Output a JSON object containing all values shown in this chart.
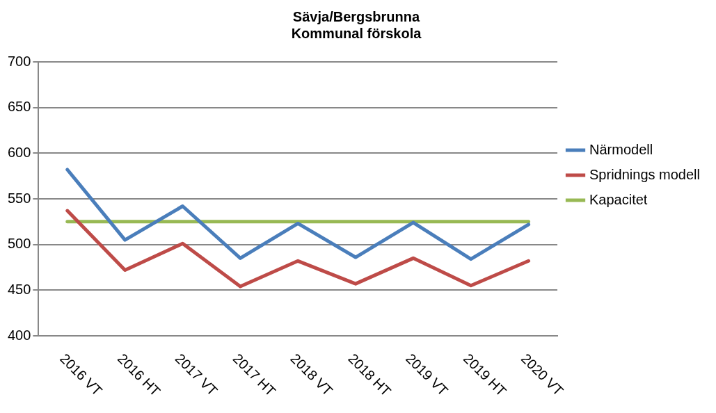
{
  "chart_data": {
    "type": "line",
    "title": [
      "Sävja/Bergsbrunna",
      "Kommunal förskola"
    ],
    "categories": [
      "2016 VT",
      "2016 HT",
      "2017 VT",
      "2017 HT",
      "2018 VT",
      "2018 HT",
      "2019 VT",
      "2019 HT",
      "2020 VT"
    ],
    "series": [
      {
        "name": "Närmodell",
        "color": "#4a7ebb",
        "values": [
          582,
          505,
          542,
          485,
          523,
          486,
          524,
          484,
          522
        ]
      },
      {
        "name": "Spridnings modell",
        "color": "#be4b48",
        "values": [
          537,
          472,
          501,
          454,
          482,
          457,
          485,
          455,
          482
        ]
      },
      {
        "name": "Kapacitet",
        "color": "#98b954",
        "values": [
          525,
          525,
          525,
          525,
          525,
          525,
          525,
          525,
          525
        ]
      }
    ],
    "ylim": [
      400,
      700
    ],
    "yticks": [
      400,
      450,
      500,
      550,
      600,
      650,
      700
    ],
    "grid": "y",
    "legend": "right",
    "marker": "none",
    "line_style": "solid"
  }
}
